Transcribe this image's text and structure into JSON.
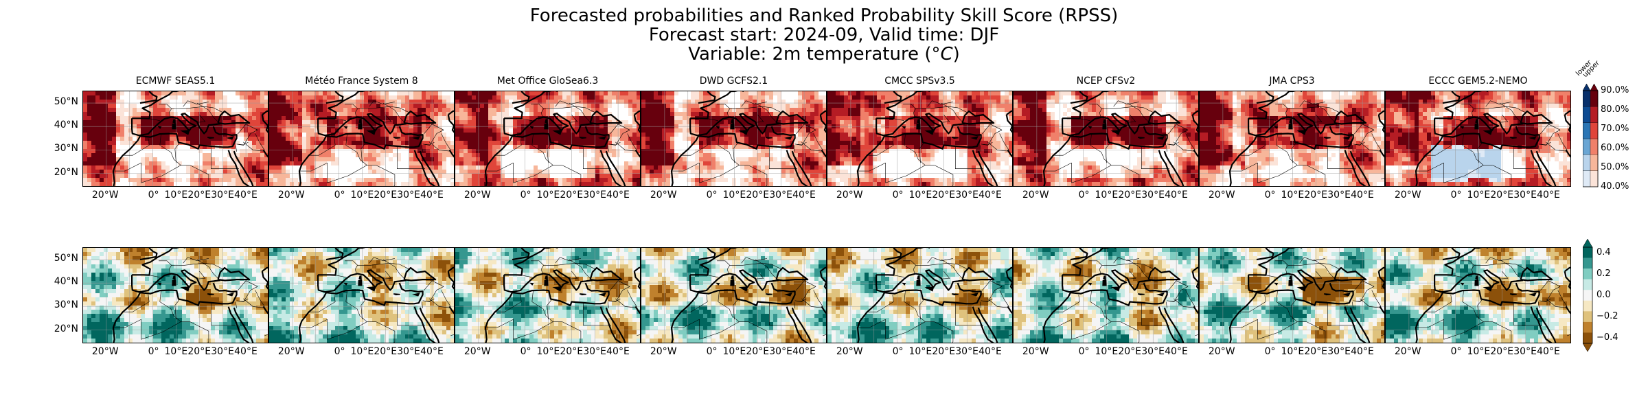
{
  "title": {
    "line1": "Forecasted probabilities and Ranked Probability Skill Score (RPSS)",
    "line2": "Forecast start: 2024-09, Valid time: DJF",
    "line3": "Variable: 2m temperature ($^\\circ C$)"
  },
  "models": [
    "ECMWF SEAS5.1",
    "Météo France System 8",
    "Met Office GloSea6.3",
    "DWD GCFS2.1",
    "CMCC SPSv3.5",
    "NCEP CFSv2",
    "JMA CPS3",
    "ECCC GEM5.2-NEMO"
  ],
  "lat_ticks": [
    "50°N",
    "40°N",
    "30°N",
    "20°N"
  ],
  "lon_ticks": [
    "20°W",
    "0°",
    "10°E",
    "20°E",
    "30°E",
    "40°E"
  ],
  "colorbar_prob": {
    "ticks": [
      "90.0%",
      "80.0%",
      "70.0%",
      "60.0%",
      "50.0%",
      "40.0%"
    ],
    "category_labels": [
      "lower",
      "upper"
    ],
    "colors_upper": [
      "#fbe3d8",
      "#f7b69a",
      "#f0806a",
      "#e0453a",
      "#b51c24",
      "#67000d"
    ],
    "colors_lower": [
      "#dfeaf6",
      "#b9d4ec",
      "#6aa6d4",
      "#2b76b5",
      "#0d4b92",
      "#08306b"
    ]
  },
  "colorbar_rpss": {
    "ticks": [
      "0.4",
      "0.2",
      "0.0",
      "−0.2",
      "−0.4"
    ],
    "colors": [
      "#01665e",
      "#35978f",
      "#80cdc1",
      "#c7eae5",
      "#f5f5f5",
      "#f6e8c3",
      "#dfc27d",
      "#bf812d",
      "#8c510a"
    ]
  },
  "chart_data": {
    "type": "heatmap",
    "rows": [
      {
        "name": "Forecasted probabilities",
        "colorbar_range": [
          40,
          90
        ],
        "units": "%"
      },
      {
        "name": "RPSS",
        "colorbar_range": [
          -0.4,
          0.4
        ]
      }
    ],
    "models": [
      "ECMWF SEAS5.1",
      "Météo France System 8",
      "Met Office GloSea6.3",
      "DWD GCFS2.1",
      "CMCC SPSv3.5",
      "NCEP CFSv2",
      "JMA CPS3",
      "ECCC GEM5.2-NEMO"
    ],
    "lat_range": [
      14,
      55
    ],
    "lon_range": [
      -30,
      50
    ]
  }
}
